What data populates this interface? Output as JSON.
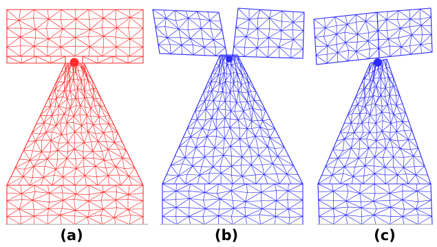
{
  "panels": [
    {
      "id": "a",
      "label": "(a)",
      "color": "#ff2d2d",
      "state": "crack-tip hole"
    },
    {
      "id": "b",
      "label": "(b)",
      "color": "#2b2bff",
      "state": "opened notch"
    },
    {
      "id": "c",
      "label": "(c)",
      "color": "#2b2bff",
      "state": "rotated upper block"
    }
  ],
  "colors": {
    "red_mesh": "#ff2d2d",
    "blue_mesh": "#2b2bff",
    "baseline": "#b0b0b0"
  }
}
